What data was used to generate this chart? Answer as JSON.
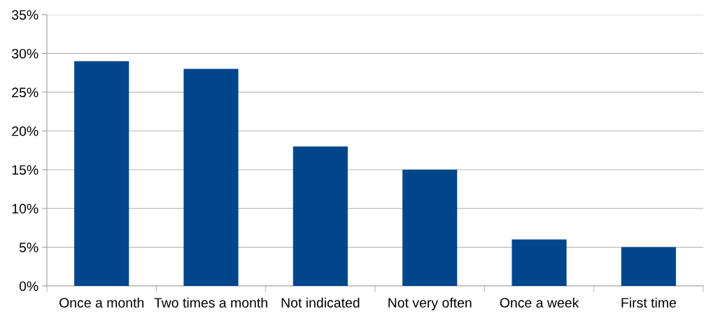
{
  "chart_data": {
    "type": "bar",
    "categories": [
      "Once a month",
      "Two times a month",
      "Not indicated",
      "Not very often",
      "Once a week",
      "First time"
    ],
    "values": [
      29,
      28,
      18,
      15,
      6,
      5
    ],
    "color": "#00468b",
    "ylim": [
      0,
      35
    ],
    "yticks": [
      {
        "value": 0,
        "label": "0%"
      },
      {
        "value": 5,
        "label": "5%"
      },
      {
        "value": 10,
        "label": "10%"
      },
      {
        "value": 15,
        "label": "15%"
      },
      {
        "value": 20,
        "label": "20%"
      },
      {
        "value": 25,
        "label": "25%"
      },
      {
        "value": 30,
        "label": "30%"
      },
      {
        "value": 35,
        "label": "35%"
      }
    ],
    "grid": "y",
    "legend": false
  }
}
